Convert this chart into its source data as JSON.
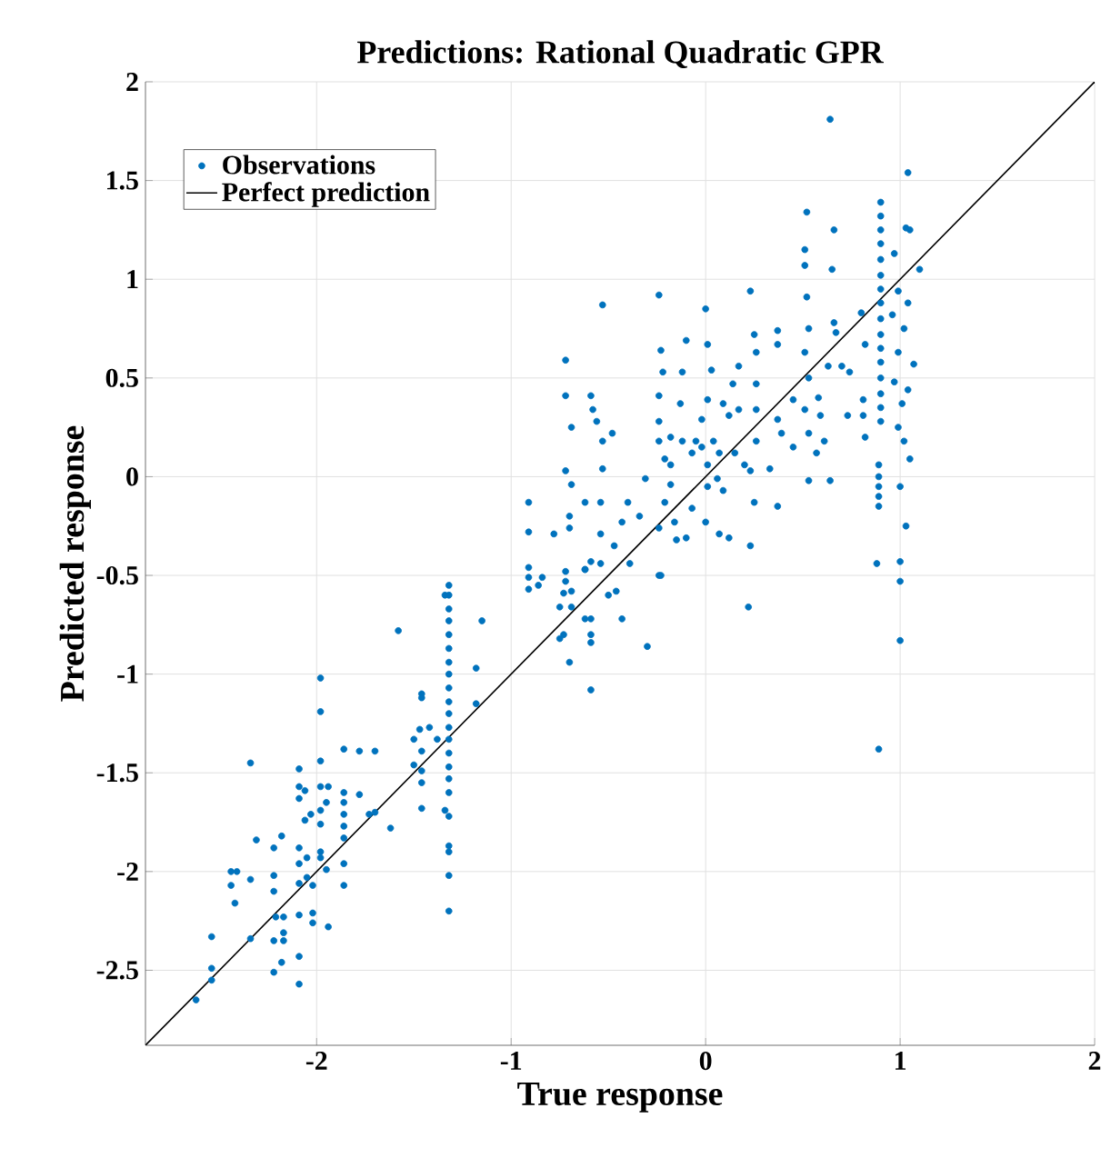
{
  "chart_data": {
    "type": "scatter",
    "title": "Predictions: Rational Quadratic GPR",
    "xlabel": "True response",
    "ylabel": "Predicted response",
    "xlim": [
      -2.88,
      2
    ],
    "ylim": [
      -2.88,
      2
    ],
    "xticks": [
      -2,
      -1,
      0,
      1,
      2
    ],
    "yticks": [
      -2.5,
      -2,
      -1.5,
      -1,
      -0.5,
      0,
      0.5,
      1,
      1.5,
      2
    ],
    "grid": true,
    "legend": "top left",
    "series": [
      {
        "name": "Observations",
        "marker": "circle",
        "color": "#0072bd",
        "x": [
          0.64,
          1.04,
          0.52,
          0.66,
          0.65,
          0.51,
          1.1,
          1.05,
          1.03,
          0.9,
          0.9,
          0.9,
          0.9,
          0.9,
          0.9,
          0.9,
          0.9,
          0.9,
          0.9,
          0.9,
          0.9,
          0.9,
          0.9,
          0.9,
          0.9,
          0.89,
          0.89,
          0.89,
          0.89,
          0.89,
          0.88,
          1.0,
          1.0,
          1.03,
          0.97,
          0.99,
          1.04,
          0.96,
          1.02,
          0.99,
          1.07,
          0.97,
          1.04,
          1.01,
          0.99,
          1.02,
          1.05,
          0.8,
          0.82,
          0.81,
          0.81,
          0.82,
          0.73,
          0.51,
          0.52,
          0.53,
          0.51,
          0.53,
          0.51,
          0.53,
          0.53,
          0.45,
          0.58,
          0.59,
          0.61,
          0.64,
          0.57,
          0.66,
          0.7,
          0.63,
          0.67,
          0.74,
          0.45,
          0.37,
          0.37,
          0.37,
          0.39,
          0.37,
          0,
          0.01,
          0.03,
          0.01,
          -0.02,
          0.04,
          -0.02,
          0.07,
          0.01,
          0.06,
          0.09,
          0.01,
          -0.05,
          -0.12,
          -0.07,
          0.15,
          0.12,
          0.09,
          0.17,
          0.23,
          0.25,
          0.26,
          0.26,
          0.26,
          0.26,
          0.23,
          0.33,
          0.25,
          0.23,
          0.17,
          0.14,
          0.2,
          0.07,
          0.12,
          0,
          -0.07,
          -0.24,
          -0.23,
          -0.22,
          -0.24,
          -0.24,
          -0.24,
          -0.21,
          -0.18,
          -0.18,
          -0.21,
          -0.24,
          -0.16,
          -0.1,
          -0.1,
          -0.12,
          -0.13,
          -0.18,
          -0.15,
          -0.24,
          -0.31,
          -0.34,
          -0.4,
          -0.43,
          -0.47,
          -0.53,
          -0.53,
          -0.53,
          -0.54,
          -0.54,
          -0.59,
          -0.58,
          -0.48,
          -0.56,
          -0.69,
          -0.69,
          -0.72,
          -0.72,
          -0.72,
          -0.7,
          -0.7,
          -0.78,
          -0.62,
          -0.91,
          -0.91,
          -0.62,
          -0.91,
          -0.91,
          -0.91,
          -0.86,
          -0.84,
          -0.72,
          -0.72,
          -0.73,
          -0.69,
          -0.75,
          -0.69,
          -0.75,
          -0.73,
          -0.7,
          -0.62,
          -0.59,
          -0.54,
          -0.62,
          -0.59,
          -0.59,
          -0.59,
          -0.59,
          -0.5,
          -0.46,
          -0.43,
          -0.39,
          -0.3,
          -0.23,
          0.22,
          1.0,
          1.0,
          0.89,
          -1.32,
          -1.32,
          -1.32,
          -1.32,
          -1.32,
          -1.32,
          -1.32,
          -1.32,
          -1.32,
          -1.32,
          -1.32,
          -1.32,
          -1.32,
          -1.32,
          -1.32,
          -1.32,
          -1.32,
          -1.32,
          -1.32,
          -1.32,
          -1.32,
          -1.32,
          -1.34,
          -1.34,
          -1.58,
          -1.15,
          -1.18,
          -1.18,
          -1.46,
          -1.46,
          -1.42,
          -1.47,
          -1.38,
          -1.5,
          -1.46,
          -1.5,
          -1.46,
          -1.46,
          -1.46,
          -1.62,
          -2.34,
          -1.98,
          -1.98,
          -1.98,
          -1.98,
          -1.94,
          -1.95,
          -1.98,
          -1.98,
          -1.98,
          -1.98,
          -1.95,
          -2.03,
          -2.06,
          -2.09,
          -2.09,
          -2.09,
          -2.06,
          -2.09,
          -2.09,
          -2.09,
          -2.05,
          -2.05,
          -2.02,
          -2.02,
          -2.02,
          -1.94,
          -2.09,
          -2.09,
          -2.09,
          -1.86,
          -1.86,
          -1.86,
          -1.86,
          -1.86,
          -1.86,
          -1.86,
          -1.86,
          -1.78,
          -1.7,
          -1.78,
          -1.73,
          -1.7,
          -2.18,
          -2.22,
          -2.31,
          -2.22,
          -2.22,
          -2.21,
          -2.17,
          -2.17,
          -2.22,
          -2.17,
          -2.22,
          -2.18,
          -2.34,
          -2.34,
          -2.44,
          -2.41,
          -2.44,
          -2.42,
          -2.54,
          -2.54,
          -2.54,
          -2.62
        ],
        "values": [
          1.81,
          1.54,
          1.34,
          1.25,
          1.05,
          1.15,
          1.05,
          1.25,
          1.26,
          1.39,
          1.32,
          1.25,
          1.18,
          1.1,
          1.02,
          0.95,
          0.88,
          0.8,
          0.72,
          0.65,
          0.58,
          0.5,
          0.42,
          0.35,
          0.28,
          0.06,
          0,
          -0.05,
          -0.1,
          -0.15,
          -0.44,
          -0.43,
          -0.05,
          -0.25,
          1.13,
          0.94,
          0.88,
          0.82,
          0.75,
          0.63,
          0.57,
          0.48,
          0.44,
          0.37,
          0.25,
          0.18,
          0.09,
          0.83,
          0.67,
          0.39,
          0.31,
          0.2,
          0.31,
          1.07,
          0.91,
          0.75,
          0.63,
          0.5,
          0.34,
          0.22,
          -0.02,
          0.15,
          0.4,
          0.31,
          0.18,
          -0.02,
          0.12,
          0.78,
          0.56,
          0.56,
          0.73,
          0.53,
          0.39,
          0.74,
          0.67,
          0.29,
          0.22,
          -0.15,
          0.85,
          0.67,
          0.54,
          0.39,
          0.29,
          0.18,
          0.15,
          0.12,
          0.06,
          -0.01,
          -0.07,
          -0.05,
          0.18,
          0.18,
          0.12,
          0.12,
          0.31,
          0.37,
          0.34,
          0.94,
          0.72,
          0.63,
          0.47,
          0.34,
          0.18,
          0.03,
          0.04,
          -0.13,
          -0.35,
          0.56,
          0.47,
          0.06,
          -0.29,
          -0.31,
          -0.23,
          -0.16,
          0.92,
          0.64,
          0.53,
          0.41,
          0.28,
          0.18,
          0.09,
          0.06,
          -0.04,
          -0.13,
          -0.26,
          -0.23,
          -0.31,
          0.69,
          0.53,
          0.37,
          0.2,
          -0.32,
          -0.5,
          -0.01,
          -0.2,
          -0.13,
          -0.23,
          -0.35,
          0.87,
          0.18,
          0.04,
          -0.13,
          -0.29,
          0.41,
          0.34,
          0.22,
          0.28,
          0.25,
          -0.04,
          0.59,
          0.41,
          0.03,
          -0.2,
          -0.26,
          -0.29,
          -0.13,
          -0.13,
          -0.28,
          -0.47,
          -0.46,
          -0.51,
          -0.57,
          -0.55,
          -0.51,
          -0.48,
          -0.53,
          -0.59,
          -0.58,
          -0.66,
          -0.66,
          -0.82,
          -0.8,
          -0.94,
          -0.47,
          -0.43,
          -0.44,
          -0.72,
          -0.72,
          -0.8,
          -0.84,
          -1.08,
          -0.6,
          -0.58,
          -0.72,
          -0.44,
          -0.86,
          -0.5,
          -0.66,
          -0.53,
          -0.83,
          -1.38,
          -0.55,
          -0.6,
          -0.67,
          -0.73,
          -0.8,
          -0.87,
          -0.94,
          -1.0,
          -1.07,
          -1.14,
          -1.2,
          -1.27,
          -1.33,
          -1.4,
          -1.47,
          -1.53,
          -1.6,
          -1.72,
          -1.87,
          -1.9,
          -2.02,
          -2.2,
          -0.6,
          -1.69,
          -0.78,
          -0.73,
          -0.97,
          -1.15,
          -1.1,
          -1.12,
          -1.27,
          -1.28,
          -1.33,
          -1.33,
          -1.39,
          -1.46,
          -1.49,
          -1.55,
          -1.68,
          -1.78,
          -1.45,
          -1.02,
          -1.19,
          -1.44,
          -1.57,
          -1.57,
          -1.65,
          -1.69,
          -1.76,
          -1.9,
          -1.93,
          -1.99,
          -1.71,
          -1.74,
          -1.48,
          -1.57,
          -1.63,
          -1.59,
          -1.88,
          -1.96,
          -2.06,
          -1.93,
          -2.03,
          -2.07,
          -2.21,
          -2.26,
          -2.28,
          -2.22,
          -2.43,
          -2.57,
          -1.38,
          -1.6,
          -1.65,
          -1.71,
          -1.77,
          -1.83,
          -1.96,
          -2.07,
          -1.39,
          -1.39,
          -1.61,
          -1.71,
          -1.7,
          -1.82,
          -1.88,
          -1.84,
          -2.02,
          -2.1,
          -2.23,
          -2.23,
          -2.31,
          -2.35,
          -2.35,
          -2.51,
          -2.46,
          -2.04,
          -2.34,
          -2.0,
          -2.0,
          -2.07,
          -2.16,
          -2.33,
          -2.49,
          -2.55,
          -2.65
        ]
      },
      {
        "name": "Perfect prediction",
        "type": "line",
        "marker": "none",
        "color": "#000000",
        "x": [
          -2.88,
          2
        ],
        "values": [
          -2.88,
          2
        ]
      }
    ]
  }
}
